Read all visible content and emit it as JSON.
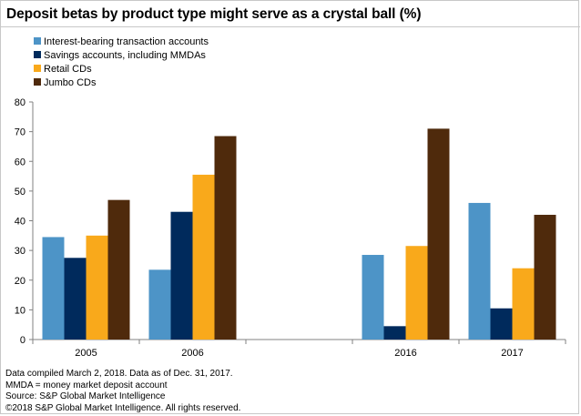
{
  "title": "Deposit betas by product type might serve as a crystal ball (%)",
  "notes": [
    "Data compiled March 2, 2018. Data as of Dec. 31, 2017.",
    "MMDA = money market deposit account",
    "Source: S&P Global Market Intelligence",
    "©2018 S&P Global Market Intelligence. All rights reserved."
  ],
  "chart_data": {
    "type": "bar",
    "categories": [
      "2005",
      "2006",
      "",
      "2016",
      "2017"
    ],
    "series": [
      {
        "name": "Interest-bearing transaction accounts",
        "color": "#4d94c7",
        "values": [
          34.5,
          23.5,
          null,
          28.5,
          46
        ]
      },
      {
        "name": "Savings accounts, including MMDAs",
        "color": "#002a5c",
        "values": [
          27.5,
          43,
          null,
          4.5,
          10.5
        ]
      },
      {
        "name": "Retail CDs",
        "color": "#f9a91b",
        "values": [
          35,
          55.5,
          null,
          31.5,
          24
        ]
      },
      {
        "name": "Jumbo CDs",
        "color": "#4f2a0c",
        "values": [
          47,
          68.5,
          null,
          71,
          42
        ]
      }
    ],
    "ylim": [
      0,
      80
    ],
    "yticks": [
      0,
      10,
      20,
      30,
      40,
      50,
      60,
      70,
      80
    ],
    "grid": false,
    "legend_position": "top-left"
  }
}
